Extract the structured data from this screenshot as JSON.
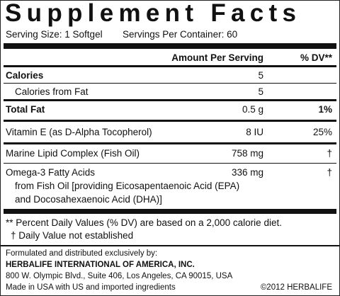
{
  "title": "Supplement Facts",
  "serving_size": "Serving Size: 1 Softgel",
  "servings_per_container": "Servings Per Container: 60",
  "header": {
    "amount": "Amount Per Serving",
    "dv": "% DV**"
  },
  "rows": [
    {
      "name": "Calories",
      "amount": "5"
    },
    {
      "name": "Calories from Fat",
      "amount": "5"
    },
    {
      "name": "Total Fat",
      "amount": "0.5 g",
      "dv": "1%"
    },
    {
      "name": "Vitamin E (as D-Alpha Tocopherol)",
      "amount": "8 IU",
      "dv": "25%"
    },
    {
      "name": "Marine Lipid Complex (Fish Oil)",
      "amount": "758 mg",
      "dv": "†"
    },
    {
      "name": "Omega-3 Fatty Acids",
      "amount": "336 mg",
      "dv": "†",
      "note_lines": [
        "from Fish Oil [providing Eicosapentaenoic Acid (EPA)",
        "and Docosahexaenoic Acid (DHA)]"
      ]
    }
  ],
  "footnotes": [
    "** Percent Daily Values (% DV) are based on a 2,000 calorie diet.",
    "† Daily Value not established"
  ],
  "footer": {
    "lines": [
      "Formulated and distributed exclusively by:",
      "HERBALIFE INTERNATIONAL OF AMERICA, INC.",
      "800 W. Olympic Blvd., Suite 406, Los Angeles, CA 90015, USA",
      "Made in USA with US and imported ingredients"
    ],
    "copyright": "©2012 HERBALIFE"
  }
}
